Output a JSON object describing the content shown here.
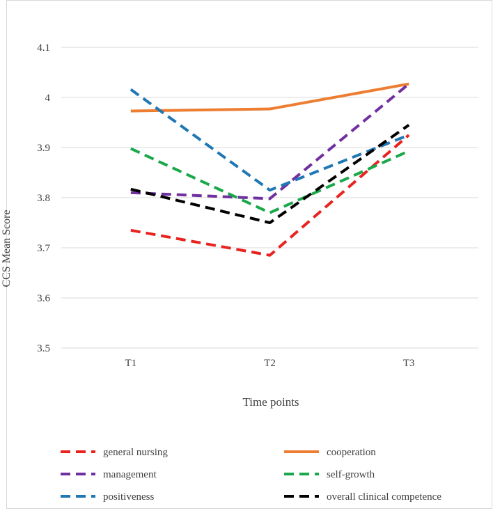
{
  "chart_data": {
    "type": "line",
    "title": "",
    "xlabel": "Time points",
    "ylabel": "CCS Mean Score",
    "categories": [
      "T1",
      "T2",
      "T3"
    ],
    "ylim": [
      3.5,
      4.1
    ],
    "yticks": [
      "3.5",
      "3.6",
      "3.7",
      "3.8",
      "3.9",
      "4",
      "4.1"
    ],
    "grid": true,
    "legend_position": "bottom",
    "series": [
      {
        "name": " general nursing",
        "values": [
          3.735,
          3.685,
          3.925
        ],
        "color": "#e8231f",
        "dash": "dashed"
      },
      {
        "name": "cooperation",
        "values": [
          3.973,
          3.977,
          4.027
        ],
        "color": "#ed7d31",
        "dash": "solid"
      },
      {
        "name": "management",
        "values": [
          3.81,
          3.798,
          4.027
        ],
        "color": "#7030a0",
        "dash": "dashed"
      },
      {
        "name": "self-growth",
        "values": [
          3.898,
          3.77,
          3.893
        ],
        "color": "#1aa84b",
        "dash": "dashed"
      },
      {
        "name": "positiveness",
        "values": [
          4.016,
          3.815,
          3.925
        ],
        "color": "#1f77b4",
        "dash": "dashed"
      },
      {
        "name": "overall clinical competence",
        "values": [
          3.817,
          3.75,
          3.945
        ],
        "color": "#000000",
        "dash": "dashed"
      }
    ]
  }
}
